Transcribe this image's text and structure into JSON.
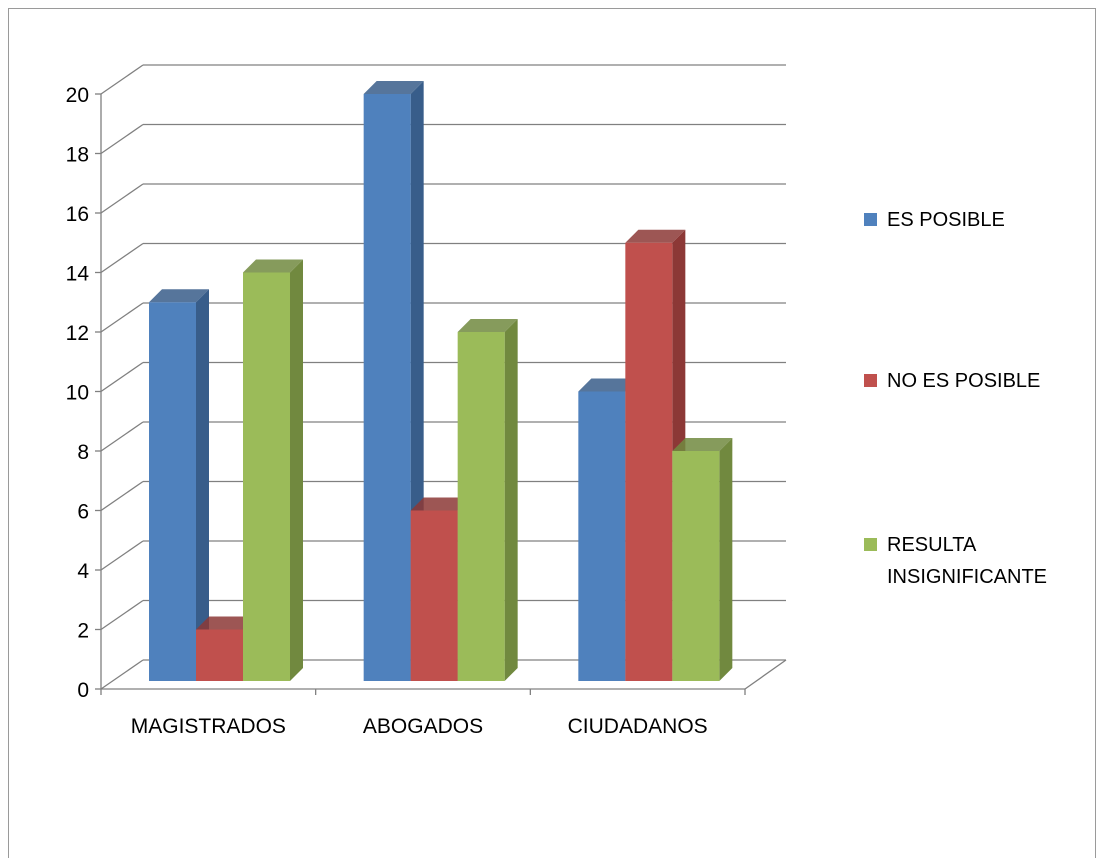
{
  "chart_data": {
    "type": "bar",
    "categories": [
      "MAGISTRADOS",
      "ABOGADOS",
      "CIUDADANOS"
    ],
    "series": [
      {
        "name": "ES POSIBLE",
        "values": [
          13,
          20,
          10
        ],
        "color": "#4F81BD",
        "side_color": "#385D8A"
      },
      {
        "name": "NO ES POSIBLE",
        "values": [
          2,
          6,
          15
        ],
        "color": "#C0504D",
        "side_color": "#8C3836"
      },
      {
        "name": "RESULTA INSIGNIFICANTE",
        "values": [
          14,
          12,
          8
        ],
        "color": "#9BBB59",
        "side_color": "#71893F"
      }
    ],
    "legend": [
      {
        "lines": [
          "ES POSIBLE"
        ]
      },
      {
        "lines": [
          "NO ES POSIBLE"
        ]
      },
      {
        "lines": [
          "RESULTA",
          "INSIGNIFICANTE"
        ]
      }
    ],
    "y_ticks": [
      "0",
      "2",
      "4",
      "6",
      "8",
      "10",
      "12",
      "14",
      "16",
      "18",
      "20"
    ],
    "ylim": [
      0,
      20
    ],
    "grid": true,
    "legend_position": "right",
    "style": "3d-clustered-column"
  }
}
